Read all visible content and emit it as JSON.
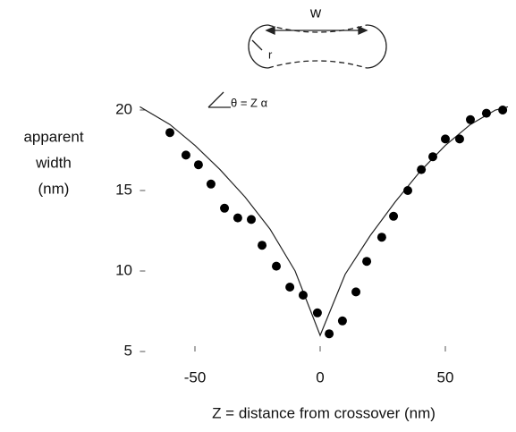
{
  "chart_data": {
    "type": "scatter",
    "y_label": [
      "apparent",
      "width",
      "(nm)"
    ],
    "x_label": "Z = distance from crossover (nm)",
    "annotations": [
      "w",
      "r",
      "θ = Z α"
    ],
    "x": [
      -60,
      -53.6,
      -48.6,
      -43.6,
      -38.2,
      -32.9,
      -27.5,
      -23.2,
      -17.5,
      -12.1,
      -6.8,
      -1.1,
      3.6,
      8.9,
      14.3,
      18.6,
      24.6,
      29.3,
      35,
      40.4,
      45,
      50,
      55.7,
      60,
      66.4,
      72.9
    ],
    "values": [
      18.6,
      17.2,
      16.6,
      15.4,
      13.9,
      13.3,
      13.2,
      11.6,
      10.3,
      9.0,
      8.5,
      7.4,
      6.1,
      6.9,
      8.7,
      10.6,
      12.1,
      13.4,
      15.0,
      16.3,
      17.1,
      18.2,
      18.2,
      19.4,
      19.8,
      20.0
    ],
    "color": "#000000",
    "model": {
      "x": [
        -72,
        -60,
        -50,
        -40,
        -30,
        -20,
        -10,
        0,
        10,
        20,
        30,
        40,
        50,
        60,
        70,
        75
      ],
      "values": [
        20.2,
        19.1,
        17.8,
        16.3,
        14.6,
        12.6,
        10.0,
        6,
        9.8,
        12.2,
        14.3,
        16.2,
        17.8,
        19.1,
        20.0,
        20.2
      ]
    },
    "xlim": [
      -72,
      75
    ],
    "ylim": [
      5,
      20.3
    ],
    "xticks": [
      -50,
      0,
      50
    ],
    "yticks": [
      5,
      10,
      15,
      20
    ],
    "grid": false
  }
}
